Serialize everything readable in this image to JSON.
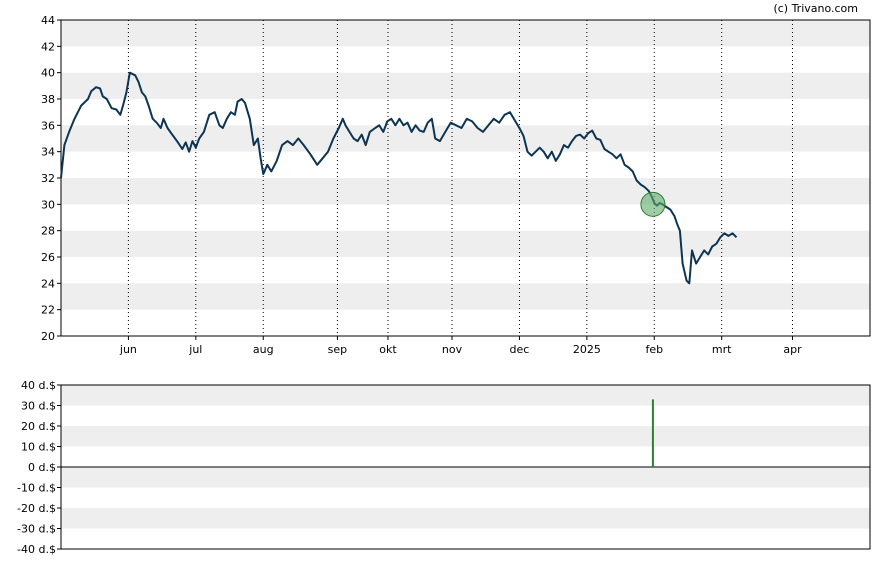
{
  "credit": "(c) Trivano.com",
  "colors": {
    "band": "#eeeeee",
    "line": "#0d3553",
    "marker_fill": "#5fae6a",
    "marker_stroke": "#2e7d32",
    "volume_bar": "#2e7d32"
  },
  "chart_data": [
    {
      "type": "line",
      "title": "",
      "ylim": [
        20,
        44
      ],
      "y_ticks": [
        "20",
        "22",
        "24",
        "26",
        "28",
        "30",
        "32",
        "34",
        "36",
        "38",
        "40",
        "42",
        "44"
      ],
      "x_ticks": [
        "jun",
        "jul",
        "aug",
        "sep",
        "okt",
        "nov",
        "dec",
        "2025",
        "feb",
        "mrt",
        "apr"
      ],
      "x_tick_positions": [
        5.0,
        6.0,
        7.0,
        8.1,
        8.85,
        9.8,
        10.8,
        11.8,
        12.8,
        13.8,
        14.85
      ],
      "grid": true,
      "x_range": [
        4.0,
        16.0
      ],
      "series": [
        {
          "values": [
            [
              4.0,
              32.0
            ],
            [
              4.05,
              34.5
            ],
            [
              4.12,
              35.5
            ],
            [
              4.2,
              36.5
            ],
            [
              4.3,
              37.5
            ],
            [
              4.4,
              38.0
            ],
            [
              4.45,
              38.6
            ],
            [
              4.52,
              38.9
            ],
            [
              4.58,
              38.8
            ],
            [
              4.62,
              38.2
            ],
            [
              4.68,
              38.0
            ],
            [
              4.75,
              37.3
            ],
            [
              4.82,
              37.2
            ],
            [
              4.88,
              36.8
            ],
            [
              4.92,
              37.5
            ],
            [
              4.97,
              38.5
            ],
            [
              5.02,
              40.0
            ],
            [
              5.1,
              39.8
            ],
            [
              5.15,
              39.3
            ],
            [
              5.2,
              38.5
            ],
            [
              5.25,
              38.2
            ],
            [
              5.3,
              37.5
            ],
            [
              5.36,
              36.5
            ],
            [
              5.42,
              36.2
            ],
            [
              5.48,
              35.8
            ],
            [
              5.52,
              36.5
            ],
            [
              5.58,
              35.8
            ],
            [
              5.65,
              35.3
            ],
            [
              5.72,
              34.8
            ],
            [
              5.8,
              34.2
            ],
            [
              5.85,
              34.7
            ],
            [
              5.9,
              34.0
            ],
            [
              5.95,
              34.8
            ],
            [
              6.0,
              34.3
            ],
            [
              6.05,
              35.0
            ],
            [
              6.12,
              35.5
            ],
            [
              6.2,
              36.8
            ],
            [
              6.28,
              37.0
            ],
            [
              6.35,
              36.0
            ],
            [
              6.4,
              35.8
            ],
            [
              6.46,
              36.5
            ],
            [
              6.52,
              37.0
            ],
            [
              6.58,
              36.8
            ],
            [
              6.62,
              37.8
            ],
            [
              6.68,
              38.0
            ],
            [
              6.73,
              37.7
            ],
            [
              6.8,
              36.5
            ],
            [
              6.86,
              34.5
            ],
            [
              6.92,
              35.0
            ],
            [
              6.96,
              33.5
            ],
            [
              7.0,
              32.3
            ],
            [
              7.06,
              33.0
            ],
            [
              7.12,
              32.5
            ],
            [
              7.2,
              33.3
            ],
            [
              7.28,
              34.5
            ],
            [
              7.36,
              34.8
            ],
            [
              7.44,
              34.5
            ],
            [
              7.52,
              35.0
            ],
            [
              7.6,
              34.5
            ],
            [
              7.7,
              33.8
            ],
            [
              7.8,
              33.0
            ],
            [
              7.88,
              33.5
            ],
            [
              7.96,
              34.0
            ],
            [
              8.04,
              35.0
            ],
            [
              8.12,
              35.8
            ],
            [
              8.18,
              36.5
            ],
            [
              8.22,
              36.0
            ],
            [
              8.28,
              35.5
            ],
            [
              8.34,
              35.0
            ],
            [
              8.4,
              34.8
            ],
            [
              8.46,
              35.3
            ],
            [
              8.52,
              34.5
            ],
            [
              8.58,
              35.5
            ],
            [
              8.66,
              35.8
            ],
            [
              8.72,
              36.0
            ],
            [
              8.78,
              35.5
            ],
            [
              8.84,
              36.3
            ],
            [
              8.9,
              36.5
            ],
            [
              8.96,
              36.0
            ],
            [
              9.02,
              36.5
            ],
            [
              9.08,
              36.0
            ],
            [
              9.14,
              36.2
            ],
            [
              9.2,
              35.5
            ],
            [
              9.26,
              36.0
            ],
            [
              9.32,
              35.6
            ],
            [
              9.38,
              35.5
            ],
            [
              9.44,
              36.2
            ],
            [
              9.5,
              36.5
            ],
            [
              9.55,
              35.0
            ],
            [
              9.62,
              34.8
            ],
            [
              9.7,
              35.5
            ],
            [
              9.78,
              36.2
            ],
            [
              9.86,
              36.0
            ],
            [
              9.94,
              35.8
            ],
            [
              10.02,
              36.5
            ],
            [
              10.1,
              36.3
            ],
            [
              10.18,
              35.8
            ],
            [
              10.26,
              35.5
            ],
            [
              10.34,
              36.0
            ],
            [
              10.42,
              36.5
            ],
            [
              10.5,
              36.2
            ],
            [
              10.58,
              36.8
            ],
            [
              10.66,
              37.0
            ],
            [
              10.74,
              36.3
            ],
            [
              10.8,
              35.8
            ],
            [
              10.86,
              35.2
            ],
            [
              10.92,
              34.0
            ],
            [
              10.98,
              33.7
            ],
            [
              11.04,
              34.0
            ],
            [
              11.1,
              34.3
            ],
            [
              11.16,
              34.0
            ],
            [
              11.22,
              33.5
            ],
            [
              11.28,
              34.0
            ],
            [
              11.34,
              33.3
            ],
            [
              11.4,
              33.8
            ],
            [
              11.46,
              34.5
            ],
            [
              11.52,
              34.3
            ],
            [
              11.58,
              34.8
            ],
            [
              11.64,
              35.2
            ],
            [
              11.7,
              35.3
            ],
            [
              11.76,
              35.0
            ],
            [
              11.82,
              35.4
            ],
            [
              11.88,
              35.6
            ],
            [
              11.94,
              35.0
            ],
            [
              12.0,
              34.9
            ],
            [
              12.06,
              34.2
            ],
            [
              12.12,
              34.0
            ],
            [
              12.18,
              33.8
            ],
            [
              12.24,
              33.5
            ],
            [
              12.3,
              33.8
            ],
            [
              12.36,
              33.0
            ],
            [
              12.42,
              32.8
            ],
            [
              12.48,
              32.5
            ],
            [
              12.54,
              31.8
            ],
            [
              12.6,
              31.5
            ],
            [
              12.66,
              31.3
            ],
            [
              12.72,
              31.0
            ],
            [
              12.76,
              30.6
            ],
            [
              12.8,
              30.1
            ],
            [
              12.84,
              29.9
            ],
            [
              12.88,
              30.1
            ],
            [
              12.92,
              30.0
            ],
            [
              12.98,
              29.8
            ],
            [
              13.04,
              29.6
            ],
            [
              13.1,
              29.1
            ],
            [
              13.14,
              28.5
            ],
            [
              13.18,
              28.0
            ],
            [
              13.22,
              25.5
            ],
            [
              13.28,
              24.2
            ],
            [
              13.32,
              24.0
            ],
            [
              13.36,
              26.5
            ],
            [
              13.42,
              25.5
            ],
            [
              13.48,
              26.0
            ],
            [
              13.54,
              26.5
            ],
            [
              13.6,
              26.2
            ],
            [
              13.66,
              26.8
            ],
            [
              13.72,
              27.0
            ],
            [
              13.78,
              27.5
            ],
            [
              13.84,
              27.8
            ],
            [
              13.9,
              27.6
            ],
            [
              13.96,
              27.8
            ],
            [
              14.02,
              27.5
            ]
          ]
        }
      ],
      "marker": {
        "x": 12.78,
        "y": 30.0
      }
    },
    {
      "type": "bar",
      "ylim": [
        -40,
        40
      ],
      "y_ticks": [
        "-40 d.$",
        "-30 d.$",
        "-20 d.$",
        "-10 d.$",
        "0 d.$",
        "10 d.$",
        "20 d.$",
        "30 d.$",
        "40 d.$"
      ],
      "grid": true,
      "x_range": [
        4.0,
        16.0
      ],
      "values": [
        {
          "x": 12.78,
          "y": 33
        }
      ]
    }
  ]
}
